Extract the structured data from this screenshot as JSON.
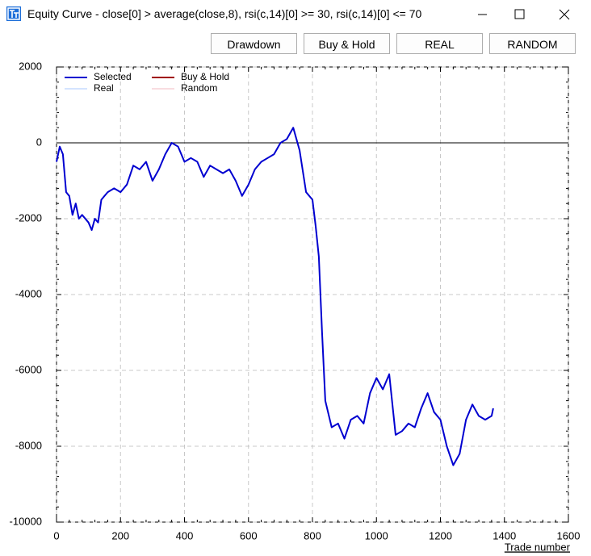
{
  "window": {
    "title": "Equity Curve - close[0] > average(close,8), rsi(c,14)[0] >= 30, rsi(c,14)[0] <= 70",
    "buttons": [
      "Drawdown",
      "Buy & Hold",
      "REAL",
      "RANDOM"
    ]
  },
  "chart_data": {
    "type": "line",
    "x_label": "Trade number",
    "xlim": [
      0,
      1600
    ],
    "xticks": [
      0,
      200,
      400,
      600,
      800,
      1000,
      1200,
      1400,
      1600
    ],
    "ylim": [
      -10000,
      2000
    ],
    "yticks": [
      -10000,
      -8000,
      -6000,
      -4000,
      -2000,
      0,
      2000
    ],
    "grid": true,
    "legend": "top-left",
    "x": [
      0,
      10,
      20,
      30,
      40,
      50,
      60,
      70,
      80,
      100,
      110,
      120,
      130,
      140,
      160,
      180,
      200,
      220,
      240,
      260,
      280,
      300,
      320,
      340,
      360,
      380,
      400,
      420,
      440,
      460,
      480,
      500,
      520,
      540,
      560,
      580,
      600,
      620,
      640,
      660,
      680,
      700,
      720,
      740,
      760,
      780,
      800,
      810,
      820,
      830,
      840,
      860,
      880,
      900,
      920,
      940,
      960,
      980,
      1000,
      1020,
      1040,
      1060,
      1080,
      1100,
      1120,
      1140,
      1160,
      1180,
      1200,
      1220,
      1240,
      1260,
      1280,
      1300,
      1320,
      1340,
      1360,
      1365
    ],
    "series": [
      {
        "name": "Selected",
        "color": "#0000d0",
        "values": [
          -500,
          -100,
          -300,
          -1300,
          -1400,
          -1900,
          -1600,
          -2000,
          -1900,
          -2100,
          -2300,
          -2000,
          -2100,
          -1500,
          -1300,
          -1200,
          -1300,
          -1100,
          -600,
          -700,
          -500,
          -1000,
          -700,
          -300,
          0,
          -100,
          -500,
          -400,
          -500,
          -900,
          -600,
          -700,
          -800,
          -700,
          -1000,
          -1400,
          -1100,
          -700,
          -500,
          -400,
          -300,
          0,
          100,
          400,
          -200,
          -1300,
          -1500,
          -2200,
          -3000,
          -5000,
          -6800,
          -7500,
          -7400,
          -7800,
          -7300,
          -7200,
          -7400,
          -6600,
          -6200,
          -6500,
          -6100,
          -7700,
          -7600,
          -7400,
          -7500,
          -7000,
          -6600,
          -7100,
          -7300,
          -8000,
          -8500,
          -8200,
          -7300,
          -6900,
          -7200,
          -7300,
          -7200,
          -7000
        ]
      },
      {
        "name": "Buy & Hold",
        "color": "#a00000",
        "values": [
          null,
          null,
          null,
          null,
          null,
          null,
          null,
          null,
          null,
          null,
          null,
          null,
          null,
          null,
          null,
          null,
          null,
          null,
          null,
          null,
          null,
          null,
          null,
          null,
          null,
          null,
          null,
          null,
          null,
          null,
          null,
          null,
          null,
          null,
          null,
          null,
          null,
          null,
          null,
          null,
          null,
          null,
          null,
          null,
          null,
          null,
          null,
          null,
          null,
          null,
          null,
          null,
          null,
          null,
          null,
          null,
          null,
          null,
          null,
          null,
          null,
          null,
          null,
          null,
          null,
          null,
          null,
          null,
          null,
          null,
          null,
          null,
          null,
          null,
          null,
          null,
          null,
          null
        ]
      },
      {
        "name": "Real",
        "color": "#a8c8ff",
        "values": [
          null,
          null,
          null,
          null,
          null,
          null,
          null,
          null,
          null,
          null,
          null,
          null,
          null,
          null,
          null,
          null,
          null,
          null,
          null,
          null,
          null,
          null,
          null,
          null,
          null,
          null,
          null,
          null,
          null,
          null,
          null,
          null,
          null,
          null,
          null,
          null,
          null,
          null,
          null,
          null,
          null,
          null,
          null,
          null,
          null,
          null,
          null,
          null,
          null,
          null,
          null,
          null,
          null,
          null,
          null,
          null,
          null,
          null,
          null,
          null,
          null,
          null,
          null,
          null,
          null,
          null,
          null,
          null,
          null,
          null,
          null,
          null,
          null,
          null,
          null,
          null,
          null,
          null
        ]
      },
      {
        "name": "Random",
        "color": "#f0b8c0",
        "values": [
          null,
          null,
          null,
          null,
          null,
          null,
          null,
          null,
          null,
          null,
          null,
          null,
          null,
          null,
          null,
          null,
          null,
          null,
          null,
          null,
          null,
          null,
          null,
          null,
          null,
          null,
          null,
          null,
          null,
          null,
          null,
          null,
          null,
          null,
          null,
          null,
          null,
          null,
          null,
          null,
          null,
          null,
          null,
          null,
          null,
          null,
          null,
          null,
          null,
          null,
          null,
          null,
          null,
          null,
          null,
          null,
          null,
          null,
          null,
          null,
          null,
          null,
          null,
          null,
          null,
          null,
          null,
          null,
          null,
          null,
          null,
          null,
          null,
          null,
          null,
          null,
          null,
          null
        ]
      }
    ]
  }
}
